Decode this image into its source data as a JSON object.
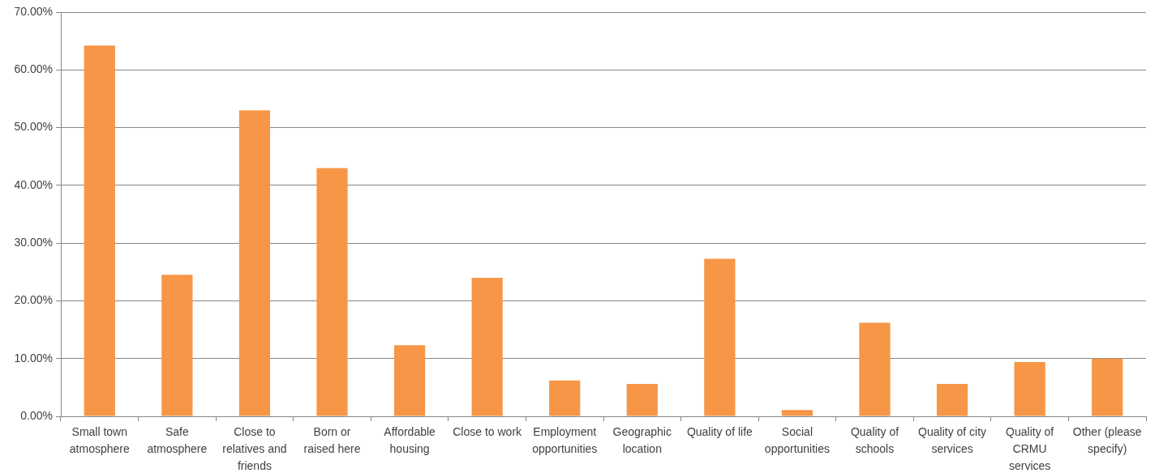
{
  "chart_data": {
    "type": "bar",
    "categories": [
      "Small town atmosphere",
      "Safe atmosphere",
      "Close to relatives and friends",
      "Born or raised here",
      "Affordable housing",
      "Close to work",
      "Employment opportunities",
      "Geographic location",
      "Quality of life",
      "Social opportunities",
      "Quality of schools",
      "Quality of city services",
      "Quality of CRMU services",
      "Other (please specify)"
    ],
    "values": [
      64.2,
      24.5,
      53.0,
      43.0,
      12.3,
      24.0,
      6.2,
      5.6,
      27.3,
      1.1,
      16.2,
      5.6,
      9.4,
      10.0
    ],
    "color": "#f79646",
    "ylim": [
      0,
      70
    ],
    "yticks": [
      {
        "value": 0,
        "label": "0.00%"
      },
      {
        "value": 10,
        "label": "10.00%"
      },
      {
        "value": 20,
        "label": "20.00%"
      },
      {
        "value": 30,
        "label": "30.00%"
      },
      {
        "value": 40,
        "label": "40.00%"
      },
      {
        "value": 50,
        "label": "50.00%"
      },
      {
        "value": 60,
        "label": "60.00%"
      },
      {
        "value": 70,
        "label": "70.00%"
      }
    ],
    "grid": "y"
  }
}
